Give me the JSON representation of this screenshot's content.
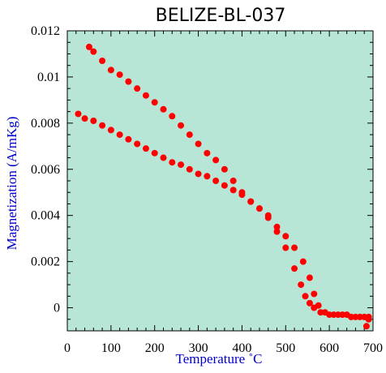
{
  "chart_data": {
    "type": "scatter",
    "title": "BELIZE-BL-037",
    "xlabel": "Temperature ˚C",
    "ylabel": "Magnetization (A/mKg)",
    "xlim": [
      0,
      700
    ],
    "ylim": [
      -0.001,
      0.012
    ],
    "xticks": [
      0,
      100,
      200,
      300,
      400,
      500,
      600,
      700
    ],
    "xtick_labels": [
      "0",
      "100",
      "200",
      "300",
      "400",
      "500",
      "600",
      "700"
    ],
    "yticks": [
      0,
      0.002,
      0.004,
      0.006,
      0.008,
      0.01,
      0.012
    ],
    "ytick_labels": [
      "0",
      "0.002",
      "0.004",
      "0.006",
      "0.008",
      "0.01",
      "0.012"
    ],
    "grid": false,
    "legend": "none",
    "colors": {
      "plot_background": "#b8e6d6",
      "points": "#ff0000",
      "axis_label": "#0000cc",
      "frame": "#000000"
    },
    "series": [
      {
        "points": [
          [
            25,
            0.0084
          ],
          [
            40,
            0.0082
          ],
          [
            60,
            0.0081
          ],
          [
            80,
            0.0079
          ],
          [
            100,
            0.0077
          ],
          [
            120,
            0.0075
          ],
          [
            140,
            0.0073
          ],
          [
            160,
            0.0071
          ],
          [
            180,
            0.0069
          ],
          [
            200,
            0.0067
          ],
          [
            220,
            0.0065
          ],
          [
            240,
            0.0063
          ],
          [
            260,
            0.0062
          ],
          [
            280,
            0.006
          ],
          [
            300,
            0.0058
          ],
          [
            320,
            0.0057
          ],
          [
            340,
            0.0055
          ],
          [
            360,
            0.0053
          ],
          [
            380,
            0.0051
          ],
          [
            400,
            0.0049
          ],
          [
            420,
            0.0046
          ],
          [
            440,
            0.0043
          ],
          [
            460,
            0.0039
          ],
          [
            480,
            0.0033
          ],
          [
            500,
            0.0026
          ],
          [
            520,
            0.0017
          ],
          [
            535,
            0.001
          ],
          [
            545,
            0.0005
          ],
          [
            555,
            0.0002
          ],
          [
            565,
            0.0
          ],
          [
            580,
            -0.0002
          ],
          [
            600,
            -0.0003
          ],
          [
            620,
            -0.0003
          ],
          [
            640,
            -0.0003
          ],
          [
            660,
            -0.0004
          ],
          [
            680,
            -0.0004
          ],
          [
            685,
            -0.0008
          ],
          [
            690,
            -0.0004
          ]
        ]
      },
      {
        "points": [
          [
            50,
            0.0113
          ],
          [
            60,
            0.0111
          ],
          [
            80,
            0.0107
          ],
          [
            100,
            0.0103
          ],
          [
            120,
            0.0101
          ],
          [
            140,
            0.0098
          ],
          [
            160,
            0.0095
          ],
          [
            180,
            0.0092
          ],
          [
            200,
            0.0089
          ],
          [
            220,
            0.0086
          ],
          [
            240,
            0.0083
          ],
          [
            260,
            0.0079
          ],
          [
            280,
            0.0075
          ],
          [
            300,
            0.0071
          ],
          [
            320,
            0.0067
          ],
          [
            340,
            0.0064
          ],
          [
            360,
            0.006
          ],
          [
            380,
            0.0055
          ],
          [
            400,
            0.005
          ],
          [
            420,
            0.0046
          ],
          [
            440,
            0.0043
          ],
          [
            460,
            0.004
          ],
          [
            480,
            0.0035
          ],
          [
            500,
            0.0031
          ],
          [
            520,
            0.0026
          ],
          [
            540,
            0.002
          ],
          [
            555,
            0.0013
          ],
          [
            565,
            0.0006
          ],
          [
            575,
            0.0001
          ],
          [
            590,
            -0.0002
          ],
          [
            610,
            -0.0003
          ],
          [
            630,
            -0.0003
          ],
          [
            650,
            -0.0004
          ],
          [
            670,
            -0.0004
          ],
          [
            690,
            -0.0005
          ]
        ]
      }
    ]
  }
}
